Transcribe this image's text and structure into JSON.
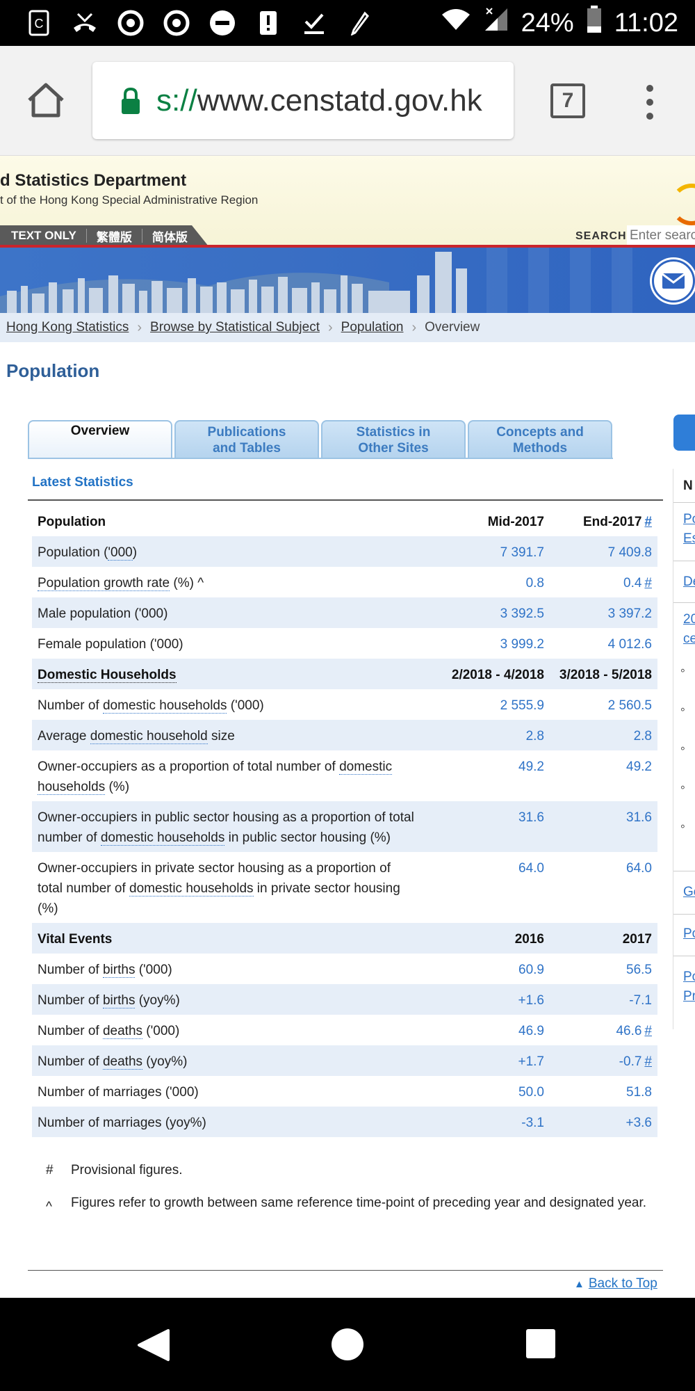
{
  "status_bar": {
    "battery": "24%",
    "time": "11:02"
  },
  "browser": {
    "url_scheme": "s://",
    "url_host": "www.censtatd.gov.hk",
    "tab_count": "7"
  },
  "header": {
    "title": "d Statistics Department",
    "subtitle": "t of the Hong Kong Special Administrative Region",
    "lang_text_only": "TEXT ONLY",
    "lang_traditional": "繁體版",
    "lang_simplified": "简体版",
    "search_label": "SEARCH",
    "search_placeholder": "Enter search"
  },
  "breadcrumb": {
    "items": [
      "Hong Kong Statistics",
      "Browse by Statistical Subject",
      "Population"
    ],
    "current": "Overview"
  },
  "page_title": "Population",
  "tabs": [
    {
      "line1": "Overview",
      "line2": ""
    },
    {
      "line1": "Publications",
      "line2": "and Tables"
    },
    {
      "line1": "Statistics in",
      "line2": "Other Sites"
    },
    {
      "line1": "Concepts and",
      "line2": "Methods"
    }
  ],
  "latest_heading": "Latest Statistics",
  "table": {
    "population_header": {
      "label": "Population",
      "c1": "Mid-2017",
      "c2": "End-2017",
      "c2_mark": "#"
    },
    "pop_rows": [
      {
        "label": "Population ('000)",
        "c1": "7 391.7",
        "c2": "7 409.8",
        "mark": ""
      },
      {
        "label": "Population growth rate (%) ^",
        "c1": "0.8",
        "c2": "0.4",
        "mark": "#"
      },
      {
        "label": "Male population ('000)",
        "c1": "3 392.5",
        "c2": "3 397.2",
        "mark": ""
      },
      {
        "label": "Female population ('000)",
        "c1": "3 999.2",
        "c2": "4 012.6",
        "mark": ""
      }
    ],
    "households_header": {
      "label": "Domestic Households",
      "c1": "2/2018 - 4/2018",
      "c2": "3/2018 - 5/2018"
    },
    "hh_rows": [
      {
        "label": "Number of domestic households ('000)",
        "c1": "2 555.9",
        "c2": "2 560.5"
      },
      {
        "label": "Average domestic household size",
        "c1": "2.8",
        "c2": "2.8"
      },
      {
        "label": "Owner-occupiers as a proportion of total number of domestic households (%)",
        "c1": "49.2",
        "c2": "49.2"
      },
      {
        "label": "Owner-occupiers in public sector housing as a proportion of total number of domestic households in public sector housing (%)",
        "c1": "31.6",
        "c2": "31.6"
      },
      {
        "label": "Owner-occupiers in private sector housing as a proportion of total number of domestic households in private sector housing (%)",
        "c1": "64.0",
        "c2": "64.0"
      }
    ],
    "vital_header": {
      "label": "Vital Events",
      "c1": "2016",
      "c2": "2017"
    },
    "vital_rows": [
      {
        "label": "Number of births ('000)",
        "c1": "60.9",
        "c2": "56.5",
        "mark": ""
      },
      {
        "label": "Number of births (yoy%)",
        "c1": "+1.6",
        "c2": "-7.1",
        "mark": ""
      },
      {
        "label": "Number of deaths ('000)",
        "c1": "46.9",
        "c2": "46.6",
        "mark": "#"
      },
      {
        "label": "Number of deaths (yoy%)",
        "c1": "+1.7",
        "c2": "-0.7",
        "mark": "#"
      },
      {
        "label": "Number of marriages ('000)",
        "c1": "50.0",
        "c2": "51.8",
        "mark": ""
      },
      {
        "label": "Number of marriages (yoy%)",
        "c1": "-3.1",
        "c2": "+3.6",
        "mark": ""
      }
    ]
  },
  "notes": [
    {
      "symbol": "#",
      "text": "Provisional figures."
    },
    {
      "symbol": "^",
      "text": "Figures refer to growth between same reference time-point of preceding year and designated year."
    }
  ],
  "back_to_top": "Back to Top",
  "side_panel": {
    "heading": "N",
    "items": [
      "Po",
      "Es",
      "De",
      "20",
      "ce",
      "Ge",
      "Po",
      "Po",
      "Pr"
    ]
  },
  "colors": {
    "link_blue": "#2f73c7",
    "title_blue": "#2f5f98",
    "row_shade": "#e6eef8",
    "banner_blue": "#3a6fc4"
  }
}
